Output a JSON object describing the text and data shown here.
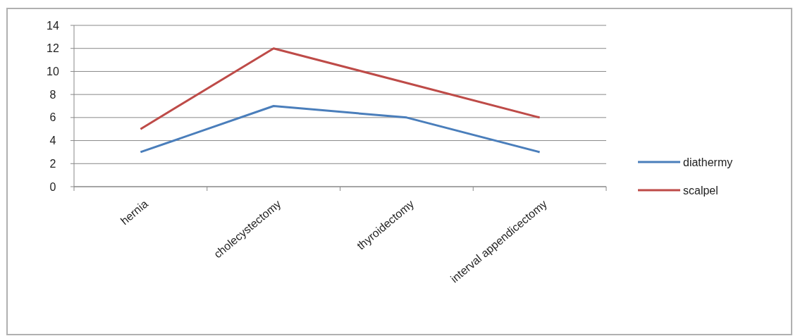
{
  "chart_data": {
    "type": "line",
    "categories": [
      "hernia",
      "cholecystectomy",
      "thyroidectomy",
      "interval appendicectomy"
    ],
    "series": [
      {
        "name": "diathermy",
        "color": "#4a7ebb",
        "values": [
          3,
          7,
          6,
          3
        ]
      },
      {
        "name": "scalpel",
        "color": "#be4b48",
        "values": [
          5,
          12,
          9,
          6
        ]
      }
    ],
    "ylim": [
      0,
      14
    ],
    "yticks": [
      0,
      2,
      4,
      6,
      8,
      10,
      12,
      14
    ],
    "grid": "y",
    "legend": "right",
    "marker": "none",
    "line_style": "solid"
  }
}
